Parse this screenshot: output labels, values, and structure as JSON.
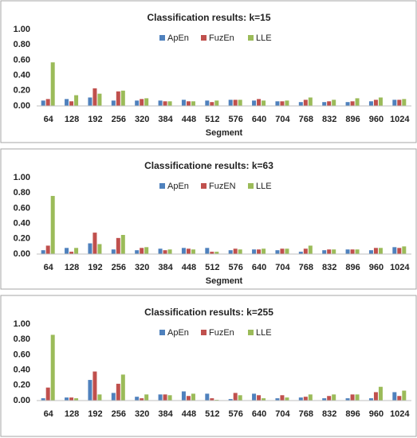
{
  "chart_data": [
    {
      "type": "bar",
      "title": "Classification results: k=15",
      "x_label": "Segment",
      "categories": [
        "64",
        "128",
        "192",
        "256",
        "320",
        "384",
        "448",
        "512",
        "576",
        "640",
        "704",
        "768",
        "832",
        "896",
        "960",
        "1024"
      ],
      "series": [
        {
          "name": "ApEn",
          "color": "#4f81bd",
          "values": [
            0.07,
            0.09,
            0.11,
            0.07,
            0.07,
            0.07,
            0.08,
            0.07,
            0.08,
            0.07,
            0.06,
            0.05,
            0.05,
            0.05,
            0.06,
            0.08
          ]
        },
        {
          "name": "FuzEn",
          "color": "#c0504d",
          "values": [
            0.09,
            0.06,
            0.23,
            0.19,
            0.09,
            0.06,
            0.06,
            0.05,
            0.08,
            0.09,
            0.06,
            0.08,
            0.06,
            0.06,
            0.08,
            0.08
          ]
        },
        {
          "name": "LLE",
          "color": "#9bbb59",
          "values": [
            0.57,
            0.14,
            0.16,
            0.2,
            0.1,
            0.06,
            0.06,
            0.07,
            0.08,
            0.07,
            0.07,
            0.11,
            0.08,
            0.1,
            0.11,
            0.09
          ]
        }
      ],
      "ylim": [
        0,
        1
      ],
      "yticks": [
        {
          "value": 0,
          "label": "0.00"
        },
        {
          "value": 0.2,
          "label": "0.20"
        },
        {
          "value": 0.4,
          "label": "0.40"
        },
        {
          "value": 0.6,
          "label": "0.60"
        },
        {
          "value": 0.8,
          "label": "0.80"
        },
        {
          "value": 1,
          "label": "1.00"
        }
      ],
      "grid": false,
      "legend": "top"
    },
    {
      "type": "bar",
      "title": "Classificatione results: k=63",
      "x_label": "Segment",
      "categories": [
        "64",
        "128",
        "192",
        "256",
        "320",
        "384",
        "448",
        "512",
        "576",
        "640",
        "704",
        "768",
        "832",
        "896",
        "960",
        "1024"
      ],
      "series": [
        {
          "name": "ApEn",
          "color": "#4f81bd",
          "values": [
            0.05,
            0.08,
            0.14,
            0.06,
            0.05,
            0.07,
            0.08,
            0.08,
            0.05,
            0.06,
            0.05,
            0.03,
            0.05,
            0.06,
            0.05,
            0.09
          ]
        },
        {
          "name": "FuzEN",
          "color": "#c0504d",
          "values": [
            0.11,
            0.03,
            0.28,
            0.21,
            0.08,
            0.05,
            0.07,
            0.03,
            0.07,
            0.06,
            0.07,
            0.07,
            0.06,
            0.06,
            0.08,
            0.08
          ]
        },
        {
          "name": "LLE",
          "color": "#9bbb59",
          "values": [
            0.76,
            0.08,
            0.13,
            0.25,
            0.09,
            0.06,
            0.06,
            0.03,
            0.06,
            0.07,
            0.07,
            0.11,
            0.06,
            0.06,
            0.08,
            0.1
          ]
        }
      ],
      "ylim": [
        0,
        1
      ],
      "yticks": [
        {
          "value": 0,
          "label": "0.00"
        },
        {
          "value": 0.2,
          "label": "0.20"
        },
        {
          "value": 0.4,
          "label": "0.40"
        },
        {
          "value": 0.6,
          "label": "0.60"
        },
        {
          "value": 0.8,
          "label": "0.80"
        },
        {
          "value": 1,
          "label": "1.00"
        }
      ],
      "grid": false,
      "legend": "top"
    },
    {
      "type": "bar",
      "title": "Classification results: k=255",
      "categories": [
        "64",
        "128",
        "192",
        "256",
        "320",
        "384",
        "448",
        "512",
        "576",
        "640",
        "704",
        "768",
        "832",
        "896",
        "960",
        "1024"
      ],
      "series": [
        {
          "name": "ApEn",
          "color": "#4f81bd",
          "values": [
            0.03,
            0.04,
            0.27,
            0.1,
            0.05,
            0.08,
            0.12,
            0.09,
            0.02,
            0.09,
            0.03,
            0.04,
            0.03,
            0.03,
            0.03,
            0.11
          ]
        },
        {
          "name": "FuzEn",
          "color": "#c0504d",
          "values": [
            0.17,
            0.04,
            0.38,
            0.22,
            0.03,
            0.08,
            0.06,
            0.03,
            0.1,
            0.07,
            0.07,
            0.05,
            0.06,
            0.08,
            0.11,
            0.06
          ]
        },
        {
          "name": "LLE",
          "color": "#9bbb59",
          "values": [
            0.86,
            0.03,
            0.08,
            0.34,
            0.08,
            0.07,
            0.09,
            0.01,
            0.07,
            0.03,
            0.04,
            0.08,
            0.08,
            0.08,
            0.18,
            0.13
          ]
        }
      ],
      "ylim": [
        0,
        1
      ],
      "yticks": [
        {
          "value": 0,
          "label": "0.00"
        },
        {
          "value": 0.2,
          "label": "0.20"
        },
        {
          "value": 0.4,
          "label": "0.40"
        },
        {
          "value": 0.6,
          "label": "0.60"
        },
        {
          "value": 0.8,
          "label": "0.80"
        },
        {
          "value": 1,
          "label": "1.00"
        }
      ],
      "grid": false,
      "legend": "top"
    }
  ]
}
